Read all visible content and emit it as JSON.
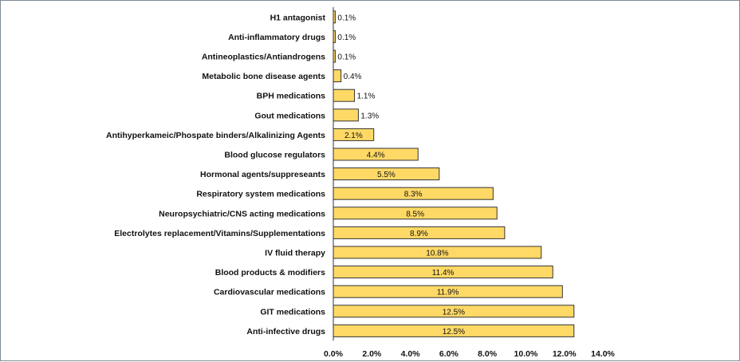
{
  "chart_data": {
    "type": "bar",
    "orientation": "horizontal",
    "categories": [
      "H1 antagonist",
      "Anti-inflammatory drugs",
      "Antineoplastics/Antiandrogens",
      "Metabolic bone disease agents",
      "BPH medications",
      "Gout medications",
      "Antihyperkameic/Phospate binders/Alkalinizing Agents",
      "Blood glucose regulators",
      "Hormonal agents/suppreseants",
      "Respiratory system medications",
      "Neuropsychiatric/CNS acting medications",
      "Electrolytes replacement/Vitamins/Supplementations",
      "IV fluid therapy",
      "Blood products & modifiers",
      "Cardiovascular medications",
      "GIT medications",
      "Anti-infective drugs"
    ],
    "values": [
      0.1,
      0.1,
      0.1,
      0.4,
      1.1,
      1.3,
      2.1,
      4.4,
      5.5,
      8.3,
      8.5,
      8.9,
      10.8,
      11.4,
      11.9,
      12.5,
      12.5
    ],
    "value_labels": [
      "0.1%",
      "0.1%",
      "0.1%",
      "0.4%",
      "1.1%",
      "1.3%",
      "2.1%",
      "4.4%",
      "5.5%",
      "8.3%",
      "8.5%",
      "8.9%",
      "10.8%",
      "11.4%",
      "11.9%",
      "12.5%",
      "12.5%"
    ],
    "xlim": [
      0,
      14
    ],
    "xticks": [
      0,
      2,
      4,
      6,
      8,
      10,
      12,
      14
    ],
    "xtick_labels": [
      "0.0%",
      "2.0%",
      "4.0%",
      "6.0%",
      "8.0%",
      "10.0%",
      "12.0%",
      "14.0%"
    ],
    "title": "",
    "xlabel": "",
    "ylabel": "",
    "grid": false,
    "legend": "none",
    "colors": {
      "bar_fill": "#ffd966",
      "bar_stroke": "#333333",
      "axis": "#333333"
    }
  }
}
